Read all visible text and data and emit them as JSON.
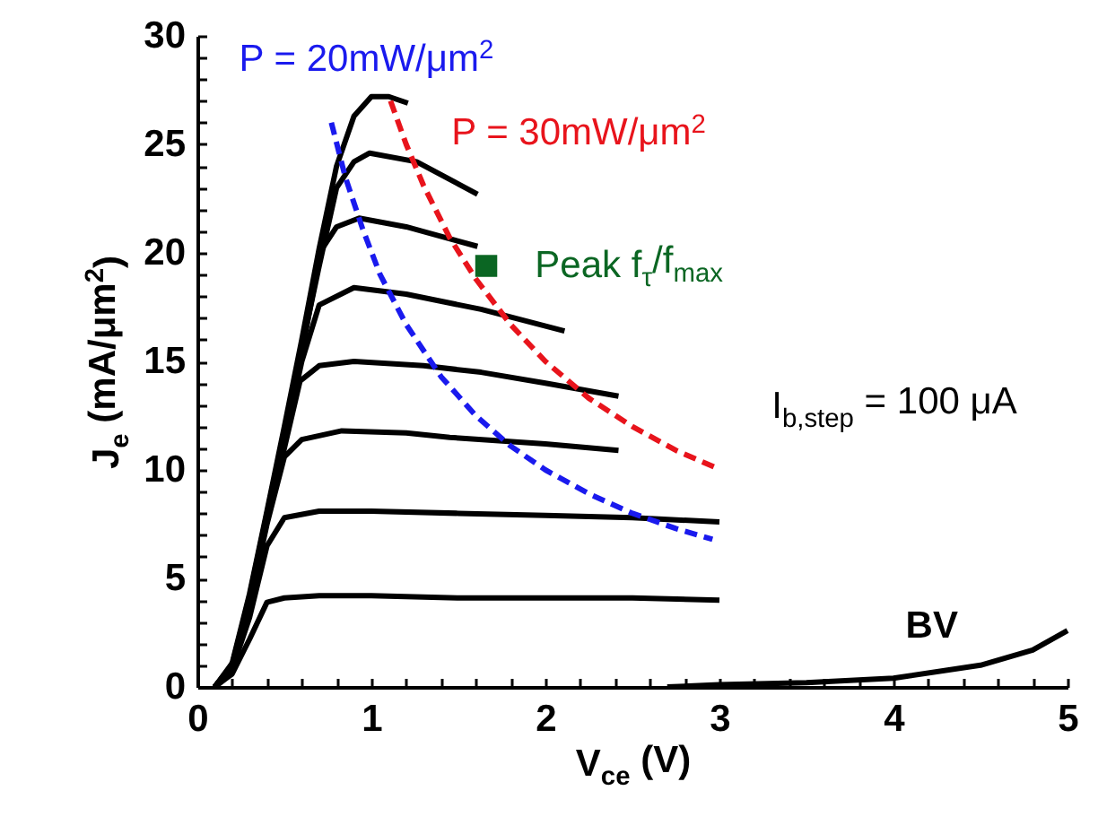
{
  "chart_data": {
    "type": "line",
    "xlabel": "V$_{ce}$ (V)",
    "ylabel": "J$_{e}$ (mA/μm$^{2}$)",
    "xlim": [
      0,
      5
    ],
    "ylim": [
      0,
      30
    ],
    "xticks": [
      0,
      {
        "value": 0.2,
        "label": null
      },
      {
        "value": 0.4,
        "label": null
      },
      {
        "value": 0.6,
        "label": null
      },
      {
        "value": 0.8,
        "label": null
      },
      1,
      {
        "value": 1.2,
        "label": null
      },
      {
        "value": 1.4,
        "label": null
      },
      {
        "value": 1.6,
        "label": null
      },
      {
        "value": 1.8,
        "label": null
      },
      2,
      {
        "value": 2.2,
        "label": null
      },
      {
        "value": 2.4,
        "label": null
      },
      {
        "value": 2.6,
        "label": null
      },
      {
        "value": 2.8,
        "label": null
      },
      3,
      {
        "value": 3.2,
        "label": null
      },
      {
        "value": 3.4,
        "label": null
      },
      {
        "value": 3.6,
        "label": null
      },
      {
        "value": 3.8,
        "label": null
      },
      4,
      {
        "value": 4.2,
        "label": null
      },
      {
        "value": 4.4,
        "label": null
      },
      {
        "value": 4.6,
        "label": null
      },
      {
        "value": 4.8,
        "label": null
      },
      5
    ],
    "yticks": [
      0,
      {
        "value": 1,
        "label": null
      },
      {
        "value": 2,
        "label": null
      },
      {
        "value": 3,
        "label": null
      },
      {
        "value": 4,
        "label": null
      },
      5,
      {
        "value": 6,
        "label": null
      },
      {
        "value": 7,
        "label": null
      },
      {
        "value": 8,
        "label": null
      },
      {
        "value": 9,
        "label": null
      },
      10,
      {
        "value": 11,
        "label": null
      },
      {
        "value": 12,
        "label": null
      },
      {
        "value": 13,
        "label": null
      },
      {
        "value": 14,
        "label": null
      },
      15,
      {
        "value": 16,
        "label": null
      },
      {
        "value": 17,
        "label": null
      },
      {
        "value": 18,
        "label": null
      },
      {
        "value": 19,
        "label": null
      },
      20,
      {
        "value": 21,
        "label": null
      },
      {
        "value": 22,
        "label": null
      },
      {
        "value": 23,
        "label": null
      },
      {
        "value": 24,
        "label": null
      },
      25,
      {
        "value": 26,
        "label": null
      },
      {
        "value": 27,
        "label": null
      },
      {
        "value": 28,
        "label": null
      },
      {
        "value": 29,
        "label": null
      },
      30
    ],
    "marker": "none",
    "line_style": "solid",
    "series": [
      {
        "color": "#000000",
        "x": [
          0.1,
          0.2,
          0.3,
          0.4,
          0.5,
          0.7,
          1,
          1.5,
          2,
          2.5,
          3
        ],
        "values": [
          0,
          0.6,
          2.2,
          3.9,
          4.1,
          4.2,
          4.2,
          4.1,
          4.1,
          4.1,
          4.0
        ]
      },
      {
        "color": "#000000",
        "x": [
          0.1,
          0.2,
          0.3,
          0.4,
          0.5,
          0.7,
          1,
          1.5,
          2,
          2.5,
          3
        ],
        "values": [
          0,
          0.8,
          3.2,
          6.5,
          7.8,
          8.1,
          8.1,
          8.0,
          7.9,
          7.8,
          7.6
        ]
      },
      {
        "color": "#000000",
        "x": [
          0.1,
          0.2,
          0.3,
          0.4,
          0.5,
          0.6,
          0.83,
          1.2,
          1.45,
          2,
          2.42
        ],
        "values": [
          0,
          0.9,
          3.8,
          7.5,
          10.6,
          11.4,
          11.8,
          11.7,
          11.5,
          11.2,
          10.9
        ]
      },
      {
        "color": "#000000",
        "x": [
          0.1,
          0.2,
          0.3,
          0.4,
          0.5,
          0.59,
          0.7,
          0.9,
          1.3,
          1.63,
          2,
          2.42
        ],
        "values": [
          0,
          1,
          4,
          7.6,
          11,
          14.1,
          14.8,
          15.0,
          14.8,
          14.5,
          14.0,
          13.4
        ]
      },
      {
        "color": "#000000",
        "x": [
          0.1,
          0.2,
          0.3,
          0.4,
          0.5,
          0.6,
          0.7,
          0.9,
          1.2,
          1.63,
          2.11
        ],
        "values": [
          0,
          1,
          4.1,
          7.8,
          11.3,
          15,
          17.6,
          18.4,
          18.1,
          17.4,
          16.4
        ]
      },
      {
        "color": "#000000",
        "x": [
          0.1,
          0.2,
          0.3,
          0.4,
          0.5,
          0.6,
          0.71,
          0.8,
          0.93,
          1.2,
          1.61
        ],
        "values": [
          0,
          1,
          4.1,
          7.9,
          11.6,
          15.4,
          20.1,
          21.2,
          21.6,
          21.2,
          20.3
        ]
      },
      {
        "color": "#000000",
        "x": [
          0.1,
          0.2,
          0.3,
          0.4,
          0.5,
          0.6,
          0.7,
          0.8,
          0.9,
          0.99,
          1.26,
          1.61
        ],
        "values": [
          0,
          1,
          4.2,
          8,
          11.8,
          15.6,
          19.4,
          23,
          24.2,
          24.6,
          24.2,
          22.7
        ]
      },
      {
        "color": "#000000",
        "x": [
          0.1,
          0.2,
          0.3,
          0.4,
          0.5,
          0.6,
          0.7,
          0.8,
          0.9,
          1.0,
          1.1,
          1.21
        ],
        "values": [
          0,
          1.1,
          4.3,
          8.1,
          12,
          16,
          20.2,
          24,
          26.3,
          27.2,
          27.2,
          26.9
        ]
      },
      {
        "color": "#000000",
        "x": [
          2.7,
          3,
          3.5,
          4,
          4.5,
          4.8,
          5
        ],
        "values": [
          0,
          0.1,
          0.2,
          0.4,
          1.0,
          1.7,
          2.6
        ]
      },
      {
        "name": "P = 20mW/μm$^{2}$",
        "color": "#1a1aee",
        "line_style": "dashed",
        "x": [
          0.77,
          0.85,
          0.95,
          1.05,
          1.2,
          1.4,
          1.6,
          1.8,
          2.0,
          2.25,
          2.5,
          2.75,
          2.96
        ],
        "values": [
          26,
          23.5,
          21.1,
          19.0,
          16.7,
          14.3,
          12.5,
          11.1,
          10,
          8.9,
          8,
          7.3,
          6.8
        ]
      },
      {
        "name": "P = 30mW/μm$^{2}$",
        "color": "#e8141c",
        "line_style": "dashed",
        "x": [
          1.11,
          1.2,
          1.3,
          1.45,
          1.6,
          1.8,
          2.0,
          2.25,
          2.5,
          2.75,
          2.98
        ],
        "values": [
          27,
          25,
          23.1,
          20.7,
          18.8,
          16.7,
          15,
          13.3,
          12,
          10.9,
          10.1
        ]
      },
      {
        "name": "Peak f$_{τ}$/f$_{max}$",
        "type": "scatter",
        "marker": "square",
        "color": "#0b6623",
        "x": [
          1.66
        ],
        "values": [
          19.4
        ]
      }
    ],
    "annotations": [
      "I$_{b,step}$ = 100 μA",
      "BV"
    ]
  }
}
